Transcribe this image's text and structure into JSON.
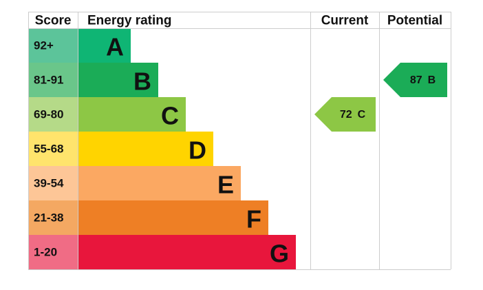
{
  "headers": [
    "Score",
    "Energy rating",
    "Current",
    "Potential"
  ],
  "bands": [
    {
      "score": "92+",
      "letter": "A",
      "color": "#0fb574",
      "score_color": "#5cc49a"
    },
    {
      "score": "81-91",
      "letter": "B",
      "color": "#1bac57",
      "score_color": "#6ac68a"
    },
    {
      "score": "69-80",
      "letter": "C",
      "color": "#8dc745",
      "score_color": "#b5da88"
    },
    {
      "score": "55-68",
      "letter": "D",
      "color": "#ffd400",
      "score_color": "#ffe46c"
    },
    {
      "score": "39-54",
      "letter": "E",
      "color": "#fba862",
      "score_color": "#fdc697"
    },
    {
      "score": "21-38",
      "letter": "F",
      "color": "#ee7f25",
      "score_color": "#f4a862"
    },
    {
      "score": "1-20",
      "letter": "G",
      "color": "#e8163c",
      "score_color": "#f06c85"
    }
  ],
  "current": {
    "value": 72,
    "letter": "C"
  },
  "potential": {
    "value": 87,
    "letter": "B"
  }
}
